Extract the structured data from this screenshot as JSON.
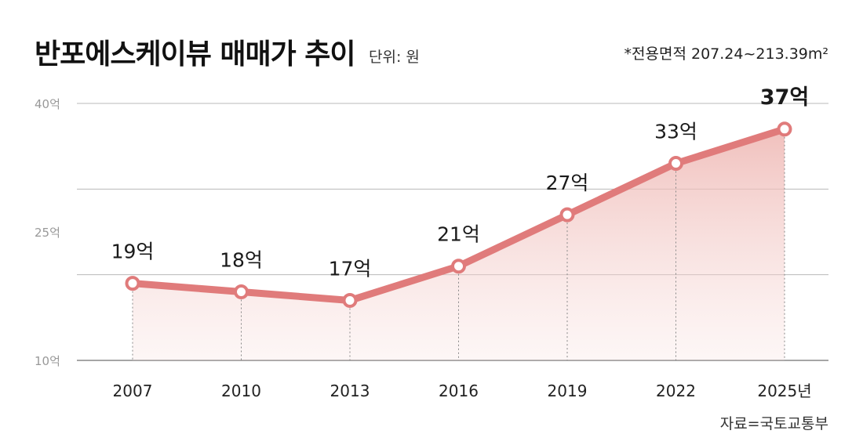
{
  "header": {
    "title": "반포에스케이뷰 매매가 추이",
    "unit": "단위: 원",
    "note": "*전용면적 207.24~213.39m²"
  },
  "footer": {
    "source": "자료=국토교통부"
  },
  "colors": {
    "line": "#e07b7b",
    "area": "#f0c2bf",
    "grid": "#b8b8b8",
    "text": "#1a1a1a"
  },
  "chart_data": {
    "type": "line",
    "categories": [
      "2007",
      "2010",
      "2013",
      "2016",
      "2019",
      "2022",
      "2025년"
    ],
    "values": [
      19,
      18,
      17,
      21,
      27,
      33,
      37
    ],
    "data_labels": [
      "19억",
      "18억",
      "17억",
      "21억",
      "27억",
      "33억",
      "37억"
    ],
    "highlight_index": 6,
    "y_ticks": [
      {
        "value": 40,
        "label": "40억"
      },
      {
        "value": 25,
        "label": "25억"
      },
      {
        "value": 10,
        "label": "10억"
      }
    ],
    "ylim": [
      10,
      40
    ],
    "grid": true,
    "legend": "none"
  }
}
